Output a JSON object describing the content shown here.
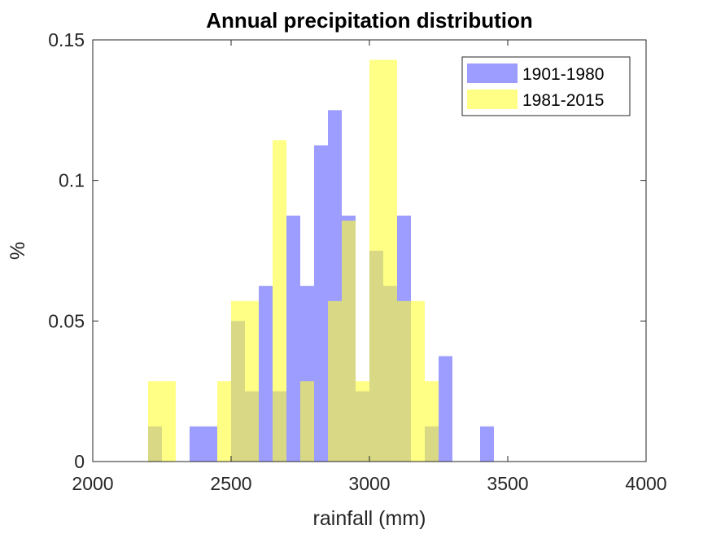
{
  "chart_data": {
    "type": "bar",
    "title": "Annual precipitation distribution",
    "xlabel": "rainfall (mm)",
    "ylabel": "%",
    "xlim": [
      2000,
      4000
    ],
    "ylim": [
      0,
      0.15
    ],
    "xticks": [
      2000,
      2500,
      3000,
      3500,
      4000
    ],
    "xtick_labels": [
      "2000",
      "2500",
      "3000",
      "3500",
      "4000"
    ],
    "yticks": [
      0,
      0.05,
      0.1,
      0.15
    ],
    "ytick_labels": [
      "0",
      "0.05",
      "0.1",
      "0.15"
    ],
    "grid": false,
    "legend": {
      "position": "top-right"
    },
    "bin_width": 50,
    "series": [
      {
        "name": "1901-1980",
        "color": "#4d4dff",
        "opacity": 0.55,
        "bins": [
          {
            "x0": 2200,
            "value": 0.0125
          },
          {
            "x0": 2350,
            "value": 0.0125
          },
          {
            "x0": 2400,
            "value": 0.0125
          },
          {
            "x0": 2500,
            "value": 0.05
          },
          {
            "x0": 2550,
            "value": 0.025
          },
          {
            "x0": 2600,
            "value": 0.0625
          },
          {
            "x0": 2650,
            "value": 0.025
          },
          {
            "x0": 2700,
            "value": 0.0875
          },
          {
            "x0": 2750,
            "value": 0.0625
          },
          {
            "x0": 2800,
            "value": 0.1125
          },
          {
            "x0": 2850,
            "value": 0.125
          },
          {
            "x0": 2900,
            "value": 0.0875
          },
          {
            "x0": 2950,
            "value": 0.025
          },
          {
            "x0": 3000,
            "value": 0.075
          },
          {
            "x0": 3050,
            "value": 0.0625
          },
          {
            "x0": 3100,
            "value": 0.0875
          },
          {
            "x0": 3200,
            "value": 0.0125
          },
          {
            "x0": 3250,
            "value": 0.0375
          },
          {
            "x0": 3400,
            "value": 0.0125
          }
        ]
      },
      {
        "name": "1981-2015",
        "color": "#ffff33",
        "opacity": 0.6,
        "bins": [
          {
            "x0": 2200,
            "value": 0.0286
          },
          {
            "x0": 2250,
            "value": 0.0286
          },
          {
            "x0": 2450,
            "value": 0.0286
          },
          {
            "x0": 2500,
            "value": 0.0571
          },
          {
            "x0": 2550,
            "value": 0.0571
          },
          {
            "x0": 2650,
            "value": 0.1143
          },
          {
            "x0": 2750,
            "value": 0.0286
          },
          {
            "x0": 2850,
            "value": 0.0571
          },
          {
            "x0": 2900,
            "value": 0.0857
          },
          {
            "x0": 2950,
            "value": 0.0286
          },
          {
            "x0": 3000,
            "value": 0.1429
          },
          {
            "x0": 3050,
            "value": 0.1429
          },
          {
            "x0": 3100,
            "value": 0.0571
          },
          {
            "x0": 3150,
            "value": 0.0571
          },
          {
            "x0": 3200,
            "value": 0.0286
          }
        ]
      }
    ]
  }
}
